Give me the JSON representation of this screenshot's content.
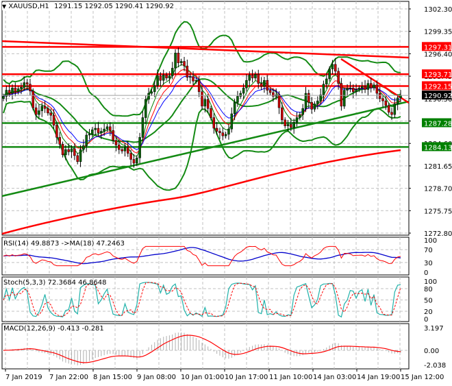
{
  "header": {
    "symbol": "XAUUSD,H1",
    "ohlc": "1291.15 1292.05 1290.41 1290.92",
    "dropdown_icon": "triangle-down-icon"
  },
  "colors": {
    "bull_candle": "#006400",
    "bear_candle": "#cc0000",
    "bollinger": "#138a13",
    "support_line": "#138a13",
    "resistance_line": "#ff0000",
    "ma_red": "#ff0000",
    "ma_blue": "#0000ff",
    "ma_green": "#008000",
    "current_price_bg": "#000000",
    "rsi": "#ff0000",
    "rsi_ma": "#0000cc",
    "stoch_main": "#20b2aa",
    "stoch_signal": "#ff0000",
    "macd_hist": "#b0b0b0",
    "macd_signal": "#ff0000",
    "grid": "#c0c0c0"
  },
  "price_axis": {
    "ticks": [
      "1302.30",
      "1299.35",
      "1296.40",
      "1293.45",
      "1290.50",
      "1287.55",
      "1284.60",
      "1281.65",
      "1278.70",
      "1275.75",
      "1272.80"
    ],
    "labels": [
      {
        "value": "1297.31",
        "color": "#ff0000"
      },
      {
        "value": "1293.71",
        "color": "#ff0000"
      },
      {
        "value": "1292.15",
        "color": "#ff0000"
      },
      {
        "value": "1290.92",
        "color": "#000000"
      },
      {
        "value": "1287.28",
        "color": "#008000"
      },
      {
        "value": "1284.13",
        "color": "#008000"
      }
    ]
  },
  "rsi_panel": {
    "label": "RSI(14) 49.8873  ->MA(18) 47.2463",
    "ticks": [
      "100",
      "70",
      "30",
      "0"
    ]
  },
  "stoch_panel": {
    "label": "Stoch(5,3,3) 72.3684 46.8648",
    "ticks": [
      "100",
      "80",
      "50",
      "20",
      "0"
    ]
  },
  "macd_panel": {
    "label": "MACD(12,26,9) -0.413 -0.281",
    "ticks": [
      "3.197",
      "0.00",
      "-2.038"
    ]
  },
  "time_axis": {
    "labels": [
      "7 Jan 2019",
      "7 Jan 22:00",
      "8 Jan 15:00",
      "9 Jan 08:00",
      "10 Jan 01:00",
      "10 Jan 17:00",
      "11 Jan 10:00",
      "14 Jan 03:00",
      "14 Jan 19:00",
      "15 Jan 12:00"
    ]
  },
  "chart_data": {
    "type": "candlestick",
    "title": "XAUUSD,H1 1291.15 1292.05 1290.41 1290.92",
    "xlabel": "",
    "ylabel": "Price",
    "ylim": [
      1272.3,
      1303.5
    ],
    "x_ticks": [
      "7 Jan 2019",
      "7 Jan 22:00",
      "8 Jan 15:00",
      "9 Jan 08:00",
      "10 Jan 01:00",
      "10 Jan 17:00",
      "11 Jan 10:00",
      "14 Jan 03:00",
      "14 Jan 19:00",
      "15 Jan 12:00"
    ],
    "y_ticks": [
      1302.3,
      1299.35,
      1296.4,
      1293.45,
      1290.5,
      1287.55,
      1284.6,
      1281.65,
      1278.7,
      1275.75,
      1272.8
    ],
    "last_ohlc": {
      "open": 1291.15,
      "high": 1292.05,
      "low": 1290.41,
      "close": 1290.92
    },
    "horizontal_levels": [
      {
        "price": 1297.31,
        "color": "red",
        "type": "resistance"
      },
      {
        "price": 1293.71,
        "color": "red",
        "type": "resistance"
      },
      {
        "price": 1292.15,
        "color": "red",
        "type": "resistance"
      },
      {
        "price": 1287.28,
        "color": "green",
        "type": "support"
      },
      {
        "price": 1284.13,
        "color": "green",
        "type": "support"
      }
    ],
    "close_series": [
      1290.8,
      1291.6,
      1291.2,
      1291.9,
      1291.4,
      1291.8,
      1292.0,
      1292.6,
      1292.4,
      1291.5,
      1289.3,
      1288.4,
      1288.9,
      1289.5,
      1289.2,
      1288.6,
      1288.3,
      1287.0,
      1285.4,
      1284.5,
      1283.1,
      1283.8,
      1283.5,
      1283.9,
      1283.0,
      1282.2,
      1283.8,
      1284.3,
      1285.7,
      1285.8,
      1286.4,
      1286.6,
      1286.0,
      1286.2,
      1286.5,
      1286.8,
      1286.3,
      1285.0,
      1284.4,
      1283.8,
      1283.6,
      1284.1,
      1283.3,
      1282.5,
      1282.0,
      1282.7,
      1285.4,
      1288.0,
      1290.4,
      1291.2,
      1291.4,
      1292.2,
      1293.5,
      1292.9,
      1293.6,
      1293.2,
      1293.5,
      1294.5,
      1296.5,
      1295.2,
      1295.4,
      1294.8,
      1293.3,
      1293.4,
      1292.8,
      1292.9,
      1291.4,
      1289.5,
      1290.4,
      1289.2,
      1288.0,
      1286.6,
      1286.2,
      1286.0,
      1285.6,
      1285.8,
      1286.5,
      1288.5,
      1290.0,
      1290.8,
      1291.2,
      1291.9,
      1292.9,
      1293.6,
      1293.2,
      1293.7,
      1292.5,
      1292.1,
      1292.9,
      1291.6,
      1291.3,
      1290.8,
      1291.0,
      1289.3,
      1287.7,
      1286.9,
      1287.1,
      1286.7,
      1287.4,
      1288.0,
      1288.4,
      1289.2,
      1291.2,
      1290.0,
      1289.1,
      1289.8,
      1290.2,
      1291.0,
      1292.4,
      1293.1,
      1294.4,
      1295.0,
      1294.1,
      1292.5,
      1289.5,
      1291.6,
      1291.8,
      1291.9,
      1291.4,
      1291.7,
      1291.9,
      1292.1,
      1291.7,
      1292.5,
      1291.9,
      1292.3,
      1291.2,
      1290.5,
      1290.2,
      1289.6,
      1288.7,
      1288.4,
      1289.8,
      1290.6,
      1290.92
    ],
    "rsi": {
      "name": "RSI(14)",
      "last": 49.8873,
      "ma_name": "MA(18)",
      "ma_last": 47.2463,
      "ylim": [
        0,
        100
      ],
      "levels": [
        70,
        30
      ]
    },
    "stochastic": {
      "name": "Stoch(5,3,3)",
      "main_last": 72.3684,
      "signal_last": 46.8648,
      "ylim": [
        0,
        100
      ],
      "levels": [
        80,
        50,
        20
      ]
    },
    "macd": {
      "name": "MACD(12,26,9)",
      "main_last": -0.413,
      "signal_last": -0.281,
      "ylim": [
        -2.038,
        3.197
      ]
    }
  }
}
